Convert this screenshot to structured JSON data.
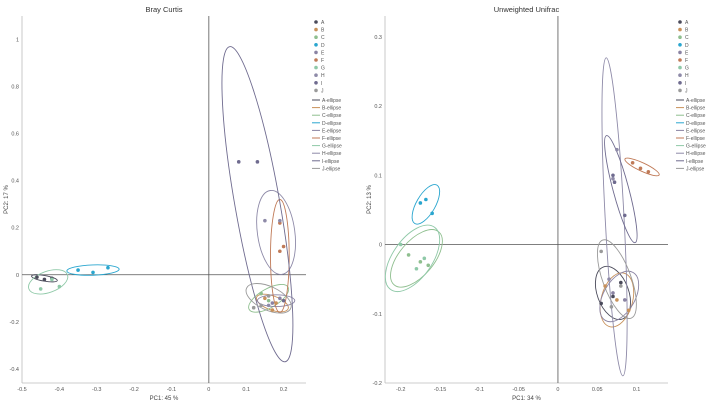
{
  "colors": {
    "A": "#4a4a5a",
    "B": "#c8915a",
    "C": "#8fbf8f",
    "D": "#2aa6cf",
    "E": "#8a83a3",
    "F": "#c07a57",
    "G": "#8fc9a8",
    "H": "#8e8aa8",
    "I": "#6f6b8f",
    "J": "#9a9a9a"
  },
  "chart_data": [
    {
      "type": "scatter",
      "title": "Bray Curtis",
      "xlabel": "PC1:  45 %",
      "ylabel": "PC2:  17 %",
      "xlim": [
        -0.5,
        0.26
      ],
      "ylim": [
        -0.46,
        1.1
      ],
      "xticks": [
        -0.5,
        -0.4,
        -0.3,
        -0.2,
        -0.1,
        0,
        0.1,
        0.2
      ],
      "xtick_labels": [
        "-0.5",
        "-0.4",
        "-0.3",
        "-0.2",
        "-0.1",
        "0",
        "0.1",
        "0.2"
      ],
      "yticks": [
        -0.4,
        -0.2,
        0,
        0.2,
        0.4,
        0.6,
        0.8,
        1
      ],
      "ytick_labels": [
        "-0.4",
        "-0.2",
        "0",
        "0.2",
        "0.4",
        "0.6",
        "0.8",
        "1"
      ],
      "legend": [
        "A",
        "B",
        "C",
        "D",
        "E",
        "F",
        "G",
        "H",
        "I",
        "J"
      ],
      "legend_ellipses": [
        "A-ellipse",
        "B-ellipse",
        "C-ellipse",
        "D-ellipse",
        "E-ellipse",
        "F-ellipse",
        "G-ellipse",
        "H-ellipse",
        "I-ellipse",
        "J-ellipse"
      ],
      "points": [
        {
          "g": "A",
          "x": -0.46,
          "y": -0.01
        },
        {
          "g": "A",
          "x": -0.44,
          "y": -0.02
        },
        {
          "g": "A",
          "x": -0.42,
          "y": -0.015
        },
        {
          "g": "B",
          "x": 0.15,
          "y": -0.1
        },
        {
          "g": "B",
          "x": 0.18,
          "y": -0.12
        },
        {
          "g": "B",
          "x": 0.17,
          "y": -0.15
        },
        {
          "g": "C",
          "x": 0.14,
          "y": -0.08
        },
        {
          "g": "C",
          "x": 0.16,
          "y": -0.11
        },
        {
          "g": "D",
          "x": -0.35,
          "y": 0.02
        },
        {
          "g": "D",
          "x": -0.31,
          "y": 0.01
        },
        {
          "g": "D",
          "x": -0.27,
          "y": 0.03
        },
        {
          "g": "E",
          "x": 0.17,
          "y": -0.12
        },
        {
          "g": "E",
          "x": 0.19,
          "y": -0.1
        },
        {
          "g": "F",
          "x": 0.19,
          "y": 0.1
        },
        {
          "g": "F",
          "x": 0.2,
          "y": 0.12
        },
        {
          "g": "F",
          "x": 0.19,
          "y": 0.22
        },
        {
          "g": "G",
          "x": -0.45,
          "y": -0.06
        },
        {
          "g": "G",
          "x": -0.42,
          "y": -0.02
        },
        {
          "g": "G",
          "x": -0.4,
          "y": -0.05
        },
        {
          "g": "H",
          "x": 0.19,
          "y": 0.23
        },
        {
          "g": "H",
          "x": 0.15,
          "y": 0.23
        },
        {
          "g": "H",
          "x": 0.16,
          "y": -0.13
        },
        {
          "g": "I",
          "x": 0.08,
          "y": 0.48
        },
        {
          "g": "I",
          "x": 0.13,
          "y": 0.48
        },
        {
          "g": "I",
          "x": 0.2,
          "y": -0.11
        },
        {
          "g": "J",
          "x": 0.12,
          "y": -0.14
        },
        {
          "g": "J",
          "x": 0.14,
          "y": -0.13
        },
        {
          "g": "J",
          "x": 0.16,
          "y": -0.09
        }
      ],
      "ellipses": [
        {
          "g": "A",
          "cx": -0.44,
          "cy": -0.015,
          "rx": 0.035,
          "ry": 0.012,
          "angle": -10
        },
        {
          "g": "B",
          "cx": 0.17,
          "cy": -0.12,
          "rx": 0.045,
          "ry": 0.03,
          "angle": -20
        },
        {
          "g": "C",
          "cx": 0.16,
          "cy": -0.1,
          "rx": 0.06,
          "ry": 0.04,
          "angle": 30
        },
        {
          "g": "D",
          "cx": -0.31,
          "cy": 0.02,
          "rx": 0.07,
          "ry": 0.022,
          "angle": 2
        },
        {
          "g": "E",
          "cx": 0.18,
          "cy": -0.11,
          "rx": 0.05,
          "ry": 0.025,
          "angle": 0
        },
        {
          "g": "F",
          "cx": 0.19,
          "cy": 0.08,
          "rx": 0.025,
          "ry": 0.24,
          "angle": 0
        },
        {
          "g": "G",
          "cx": -0.43,
          "cy": -0.03,
          "rx": 0.055,
          "ry": 0.045,
          "angle": 20
        },
        {
          "g": "H",
          "cx": 0.18,
          "cy": 0.18,
          "rx": 0.05,
          "ry": 0.18,
          "angle": 8
        },
        {
          "g": "I",
          "cx": 0.13,
          "cy": 0.3,
          "rx": 0.06,
          "ry": 0.68,
          "angle": 10
        },
        {
          "g": "J",
          "cx": 0.16,
          "cy": -0.1,
          "rx": 0.065,
          "ry": 0.05,
          "angle": -25
        }
      ]
    },
    {
      "type": "scatter",
      "title": "Unweighted Unifrac",
      "xlabel": "PC1:  34 %",
      "ylabel": "PC2:  13 %",
      "xlim": [
        -0.22,
        0.14
      ],
      "ylim": [
        -0.2,
        0.33
      ],
      "xticks": [
        -0.2,
        -0.15,
        -0.1,
        -0.05,
        0,
        0.05,
        0.1
      ],
      "xtick_labels": [
        "-0.2",
        "-0.15",
        "-0.1",
        "-0.05",
        "0",
        "0.05",
        "0.1"
      ],
      "yticks": [
        -0.2,
        -0.1,
        0,
        0.1,
        0.2,
        0.3
      ],
      "ytick_labels": [
        "-0.2",
        "-0.1",
        "0",
        "0.1",
        "0.2",
        "0.3"
      ],
      "legend": [
        "A",
        "B",
        "C",
        "D",
        "E",
        "F",
        "G",
        "H",
        "I",
        "J"
      ],
      "legend_ellipses": [
        "A-ellipse",
        "B-ellipse",
        "C-ellipse",
        "D-ellipse",
        "E-ellipse",
        "F-ellipse",
        "G-ellipse",
        "H-ellipse",
        "I-ellipse",
        "J-ellipse"
      ],
      "points": [
        {
          "g": "A",
          "x": 0.055,
          "y": -0.085
        },
        {
          "g": "A",
          "x": 0.07,
          "y": -0.075
        },
        {
          "g": "A",
          "x": 0.08,
          "y": -0.055
        },
        {
          "g": "B",
          "x": 0.06,
          "y": -0.06
        },
        {
          "g": "B",
          "x": 0.075,
          "y": -0.08
        },
        {
          "g": "B",
          "x": 0.09,
          "y": -0.095
        },
        {
          "g": "C",
          "x": -0.19,
          "y": -0.015
        },
        {
          "g": "C",
          "x": -0.175,
          "y": -0.025
        },
        {
          "g": "C",
          "x": -0.165,
          "y": -0.03
        },
        {
          "g": "D",
          "x": -0.175,
          "y": 0.06
        },
        {
          "g": "D",
          "x": -0.168,
          "y": 0.065
        },
        {
          "g": "D",
          "x": -0.16,
          "y": 0.045
        },
        {
          "g": "E",
          "x": 0.07,
          "y": -0.07
        },
        {
          "g": "E",
          "x": 0.085,
          "y": -0.08
        },
        {
          "g": "F",
          "x": 0.105,
          "y": 0.11
        },
        {
          "g": "F",
          "x": 0.115,
          "y": 0.105
        },
        {
          "g": "F",
          "x": 0.095,
          "y": 0.118
        },
        {
          "g": "G",
          "x": -0.2,
          "y": 0.0
        },
        {
          "g": "G",
          "x": -0.17,
          "y": -0.02
        },
        {
          "g": "G",
          "x": -0.18,
          "y": -0.035
        },
        {
          "g": "H",
          "x": 0.07,
          "y": 0.095
        },
        {
          "g": "H",
          "x": 0.075,
          "y": 0.137
        },
        {
          "g": "H",
          "x": 0.065,
          "y": -0.05
        },
        {
          "g": "I",
          "x": 0.07,
          "y": 0.1
        },
        {
          "g": "I",
          "x": 0.072,
          "y": 0.09
        },
        {
          "g": "I",
          "x": 0.085,
          "y": 0.042
        },
        {
          "g": "J",
          "x": 0.055,
          "y": -0.01
        },
        {
          "g": "J",
          "x": 0.08,
          "y": -0.06
        },
        {
          "g": "J",
          "x": 0.068,
          "y": -0.09
        }
      ],
      "ellipses": [
        {
          "g": "A",
          "cx": 0.07,
          "cy": -0.07,
          "rx": 0.02,
          "ry": 0.04,
          "angle": 20
        },
        {
          "g": "B",
          "cx": 0.075,
          "cy": -0.08,
          "rx": 0.02,
          "ry": 0.04,
          "angle": -15
        },
        {
          "g": "C",
          "cx": -0.18,
          "cy": -0.02,
          "rx": 0.022,
          "ry": 0.05,
          "angle": -40
        },
        {
          "g": "D",
          "cx": -0.168,
          "cy": 0.058,
          "rx": 0.012,
          "ry": 0.032,
          "angle": -30
        },
        {
          "g": "E",
          "cx": 0.078,
          "cy": -0.075,
          "rx": 0.02,
          "ry": 0.04,
          "angle": -30
        },
        {
          "g": "F",
          "cx": 0.107,
          "cy": 0.112,
          "rx": 0.024,
          "ry": 0.006,
          "angle": -25
        },
        {
          "g": "G",
          "cx": -0.185,
          "cy": -0.02,
          "rx": 0.025,
          "ry": 0.055,
          "angle": -35
        },
        {
          "g": "H",
          "cx": 0.072,
          "cy": 0.04,
          "rx": 0.012,
          "ry": 0.23,
          "angle": 3
        },
        {
          "g": "I",
          "cx": 0.08,
          "cy": 0.08,
          "rx": 0.01,
          "ry": 0.08,
          "angle": 15
        },
        {
          "g": "J",
          "cx": 0.075,
          "cy": -0.05,
          "rx": 0.018,
          "ry": 0.06,
          "angle": 20
        }
      ]
    }
  ]
}
